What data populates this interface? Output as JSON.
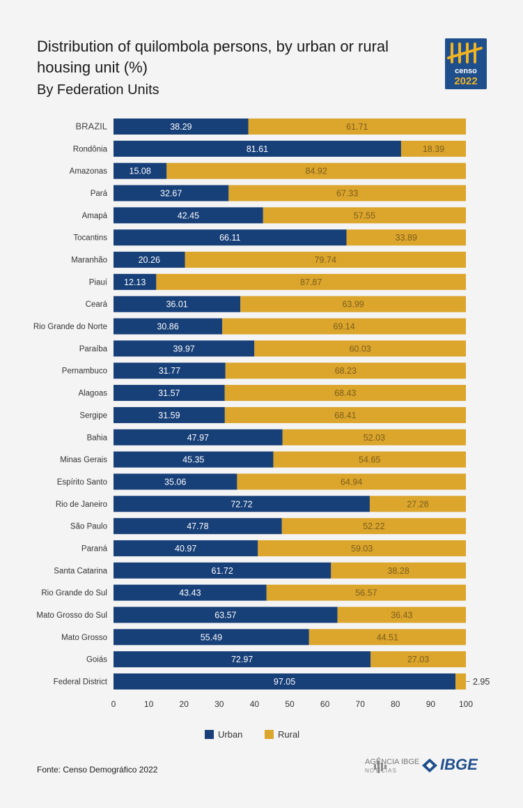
{
  "title": "Distribution of quilombola persons, by urban or rural housing unit (%)",
  "subtitle": "By Federation Units",
  "logo_text": {
    "censo": "censo",
    "year": "2022"
  },
  "source": "Fonte: Censo Demográfico 2022",
  "footer": {
    "agencia": "AGÊNCIA IBGE",
    "noticias": "NOTÍCIAS",
    "ibge": "IBGE"
  },
  "colors": {
    "urban": "#173f78",
    "rural": "#dca52c",
    "background": "#f4f4f4"
  },
  "chart_data": {
    "type": "bar",
    "orientation": "horizontal",
    "stacked": true,
    "categories": [
      "BRAZIL",
      "Rondônia",
      "Amazonas",
      "Pará",
      "Amapá",
      "Tocantins",
      "Maranhão",
      "Piauí",
      "Ceará",
      "Rio Grande do Norte",
      "Paraíba",
      "Pernambuco",
      "Alagoas",
      "Sergipe",
      "Bahia",
      "Minas Gerais",
      "Espírito Santo",
      "Rio de Janeiro",
      "São Paulo",
      "Paraná",
      "Santa Catarina",
      "Rio Grande do Sul",
      "Mato Grosso do Sul",
      "Mato Grosso",
      "Goiás",
      "Federal District"
    ],
    "series": [
      {
        "name": "Urban",
        "values": [
          38.29,
          81.61,
          15.08,
          32.67,
          42.45,
          66.11,
          20.26,
          12.13,
          36.01,
          30.86,
          39.97,
          31.77,
          31.57,
          31.59,
          47.97,
          45.35,
          35.06,
          72.72,
          47.78,
          40.97,
          61.72,
          43.43,
          63.57,
          55.49,
          72.97,
          97.05
        ]
      },
      {
        "name": "Rural",
        "values": [
          61.71,
          18.39,
          84.92,
          67.33,
          57.55,
          33.89,
          79.74,
          87.87,
          63.99,
          69.14,
          60.03,
          68.23,
          68.43,
          68.41,
          52.03,
          54.65,
          64.94,
          27.28,
          52.22,
          59.03,
          38.28,
          56.57,
          36.43,
          44.51,
          27.03,
          2.95
        ]
      }
    ],
    "xlim": [
      0,
      100
    ],
    "xticks": [
      0,
      10,
      20,
      30,
      40,
      50,
      60,
      70,
      80,
      90,
      100
    ],
    "legend_position": "bottom"
  }
}
